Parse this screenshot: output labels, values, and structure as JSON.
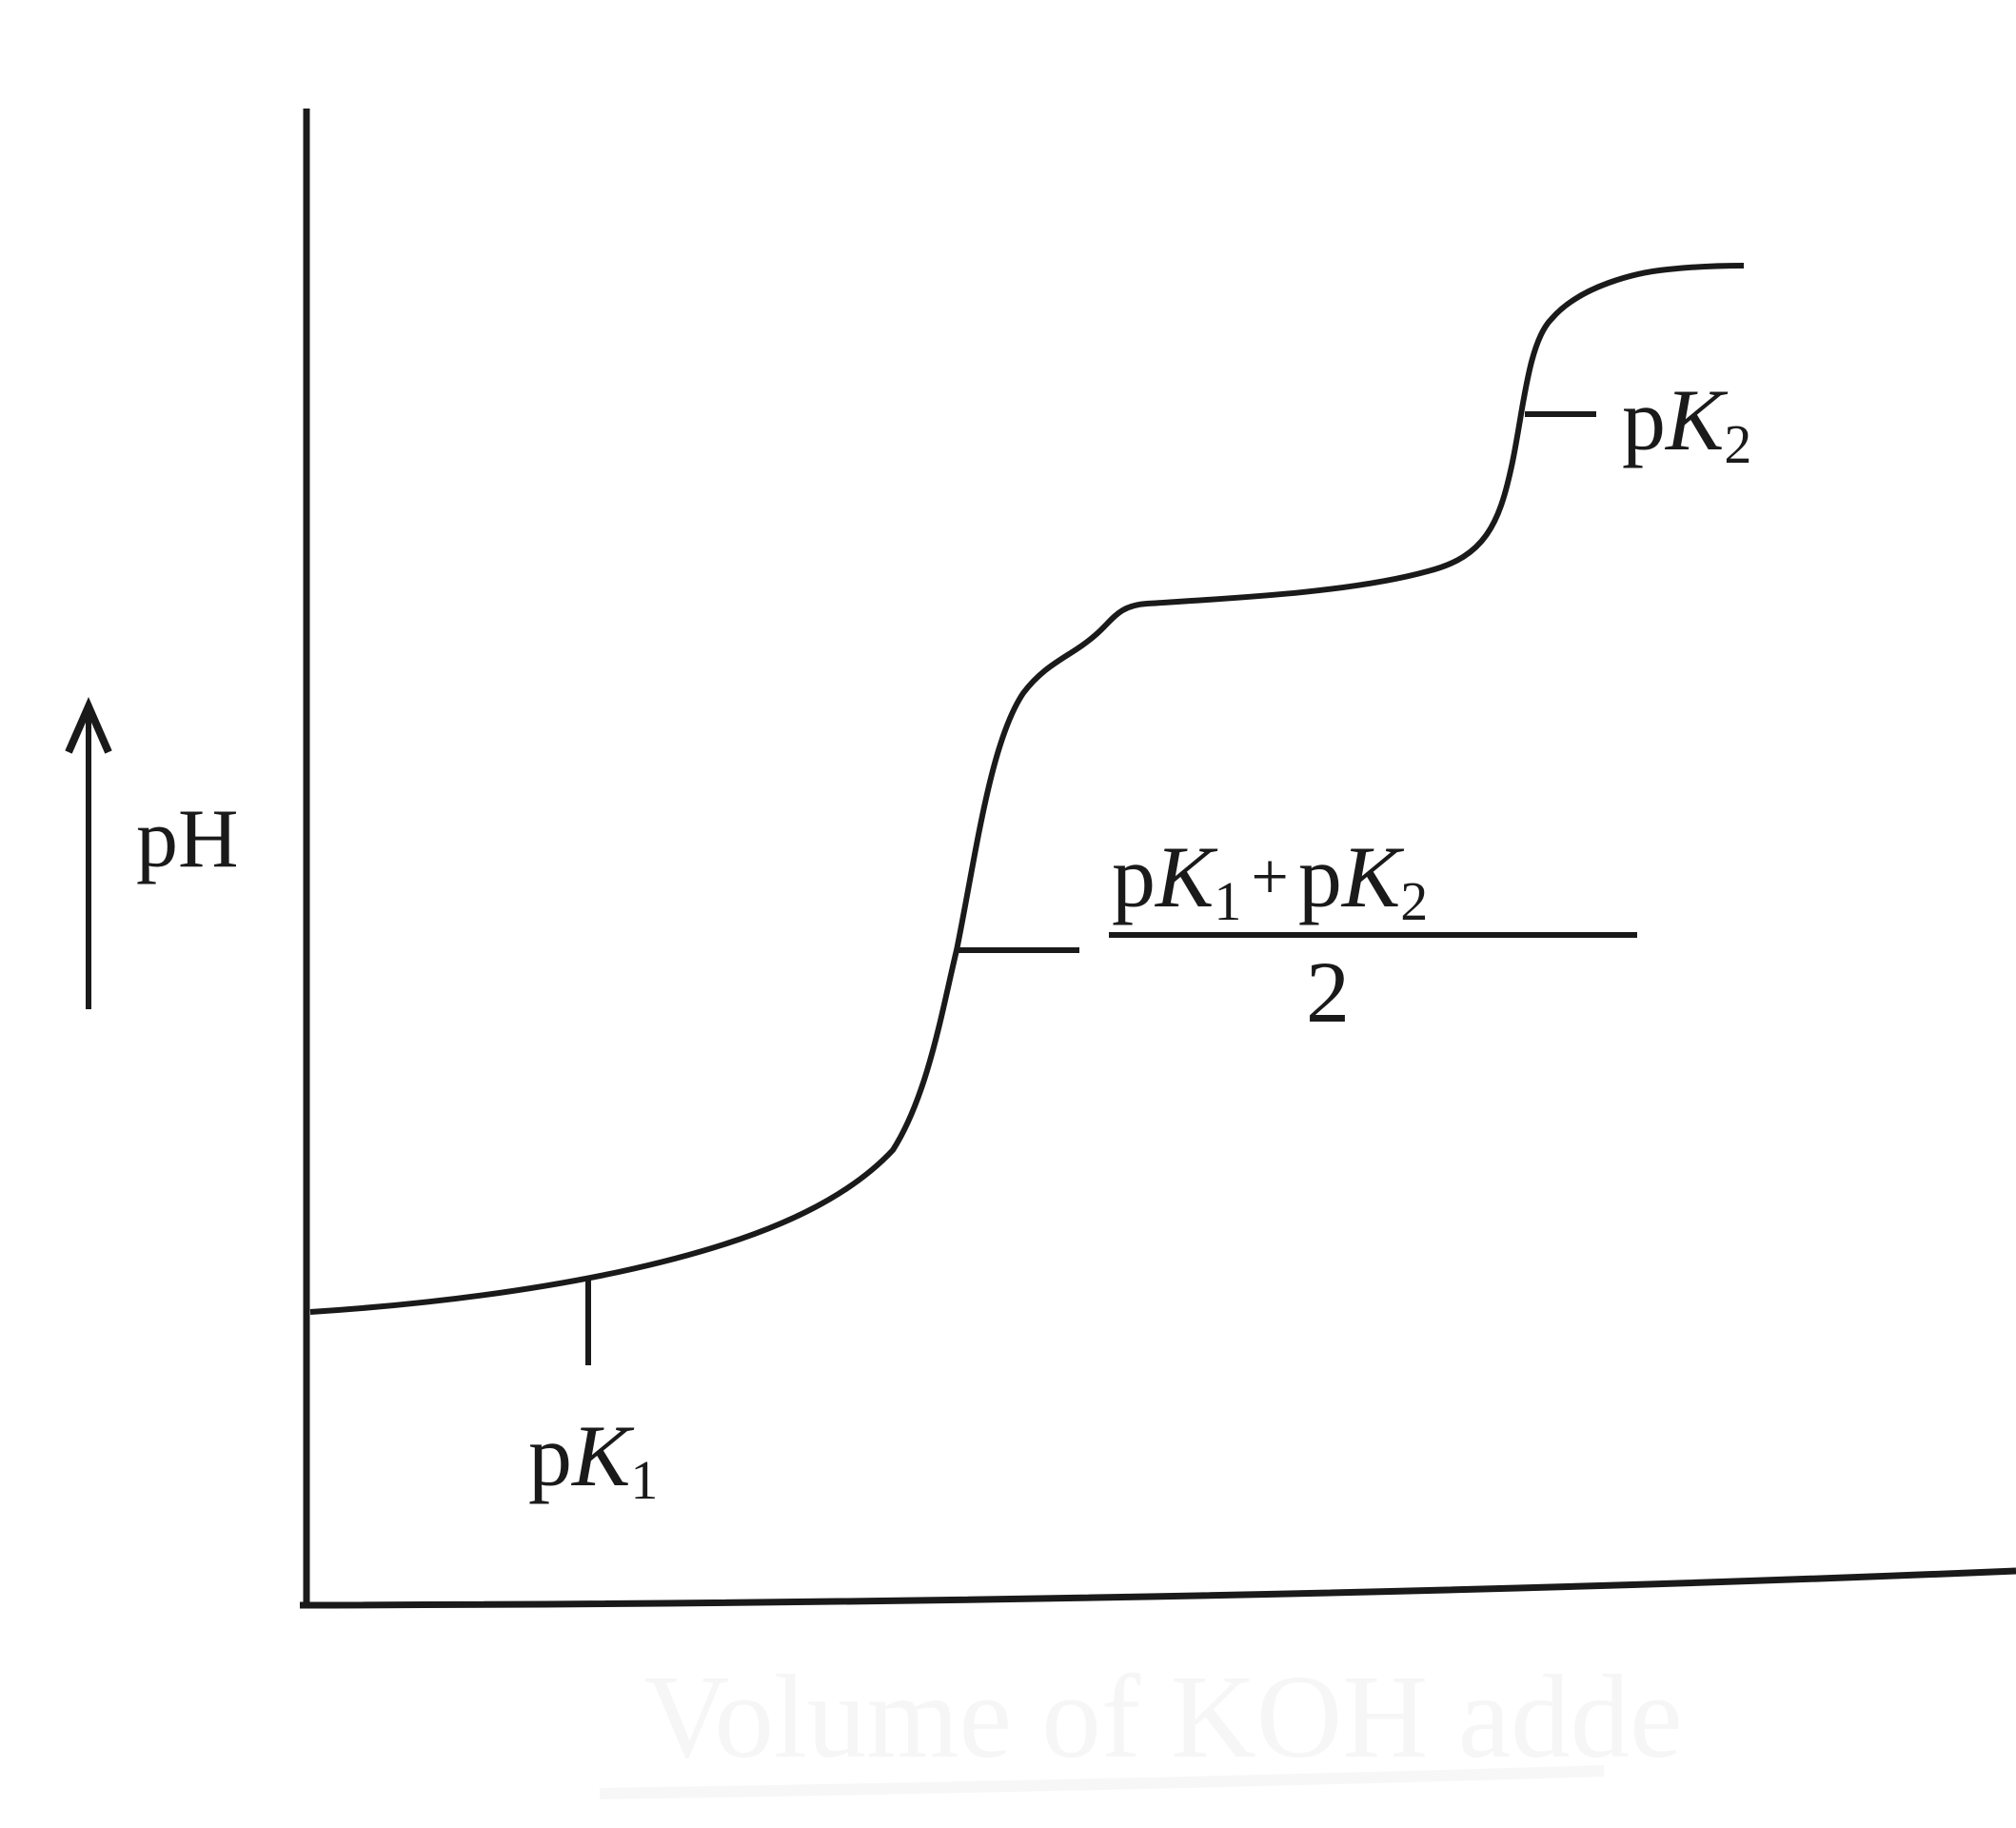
{
  "chart_data": {
    "type": "line",
    "title": "",
    "ylabel": "pH",
    "xlabel": "Volume of KOH adde",
    "grid": false,
    "annotations": {
      "pk1": {
        "p": "p",
        "k": "K",
        "sub": "1"
      },
      "midpoint": {
        "p1": "p",
        "k1": "K",
        "sub1": "1",
        "plus": "+",
        "p2": "p",
        "k2": "K",
        "sub2": "2",
        "denominator": "2"
      },
      "pk2": {
        "p": "p",
        "k": "K",
        "sub": "2"
      }
    }
  },
  "colors": {
    "ink": "#1a1a1a",
    "faint_label": "#f6f6f6"
  }
}
